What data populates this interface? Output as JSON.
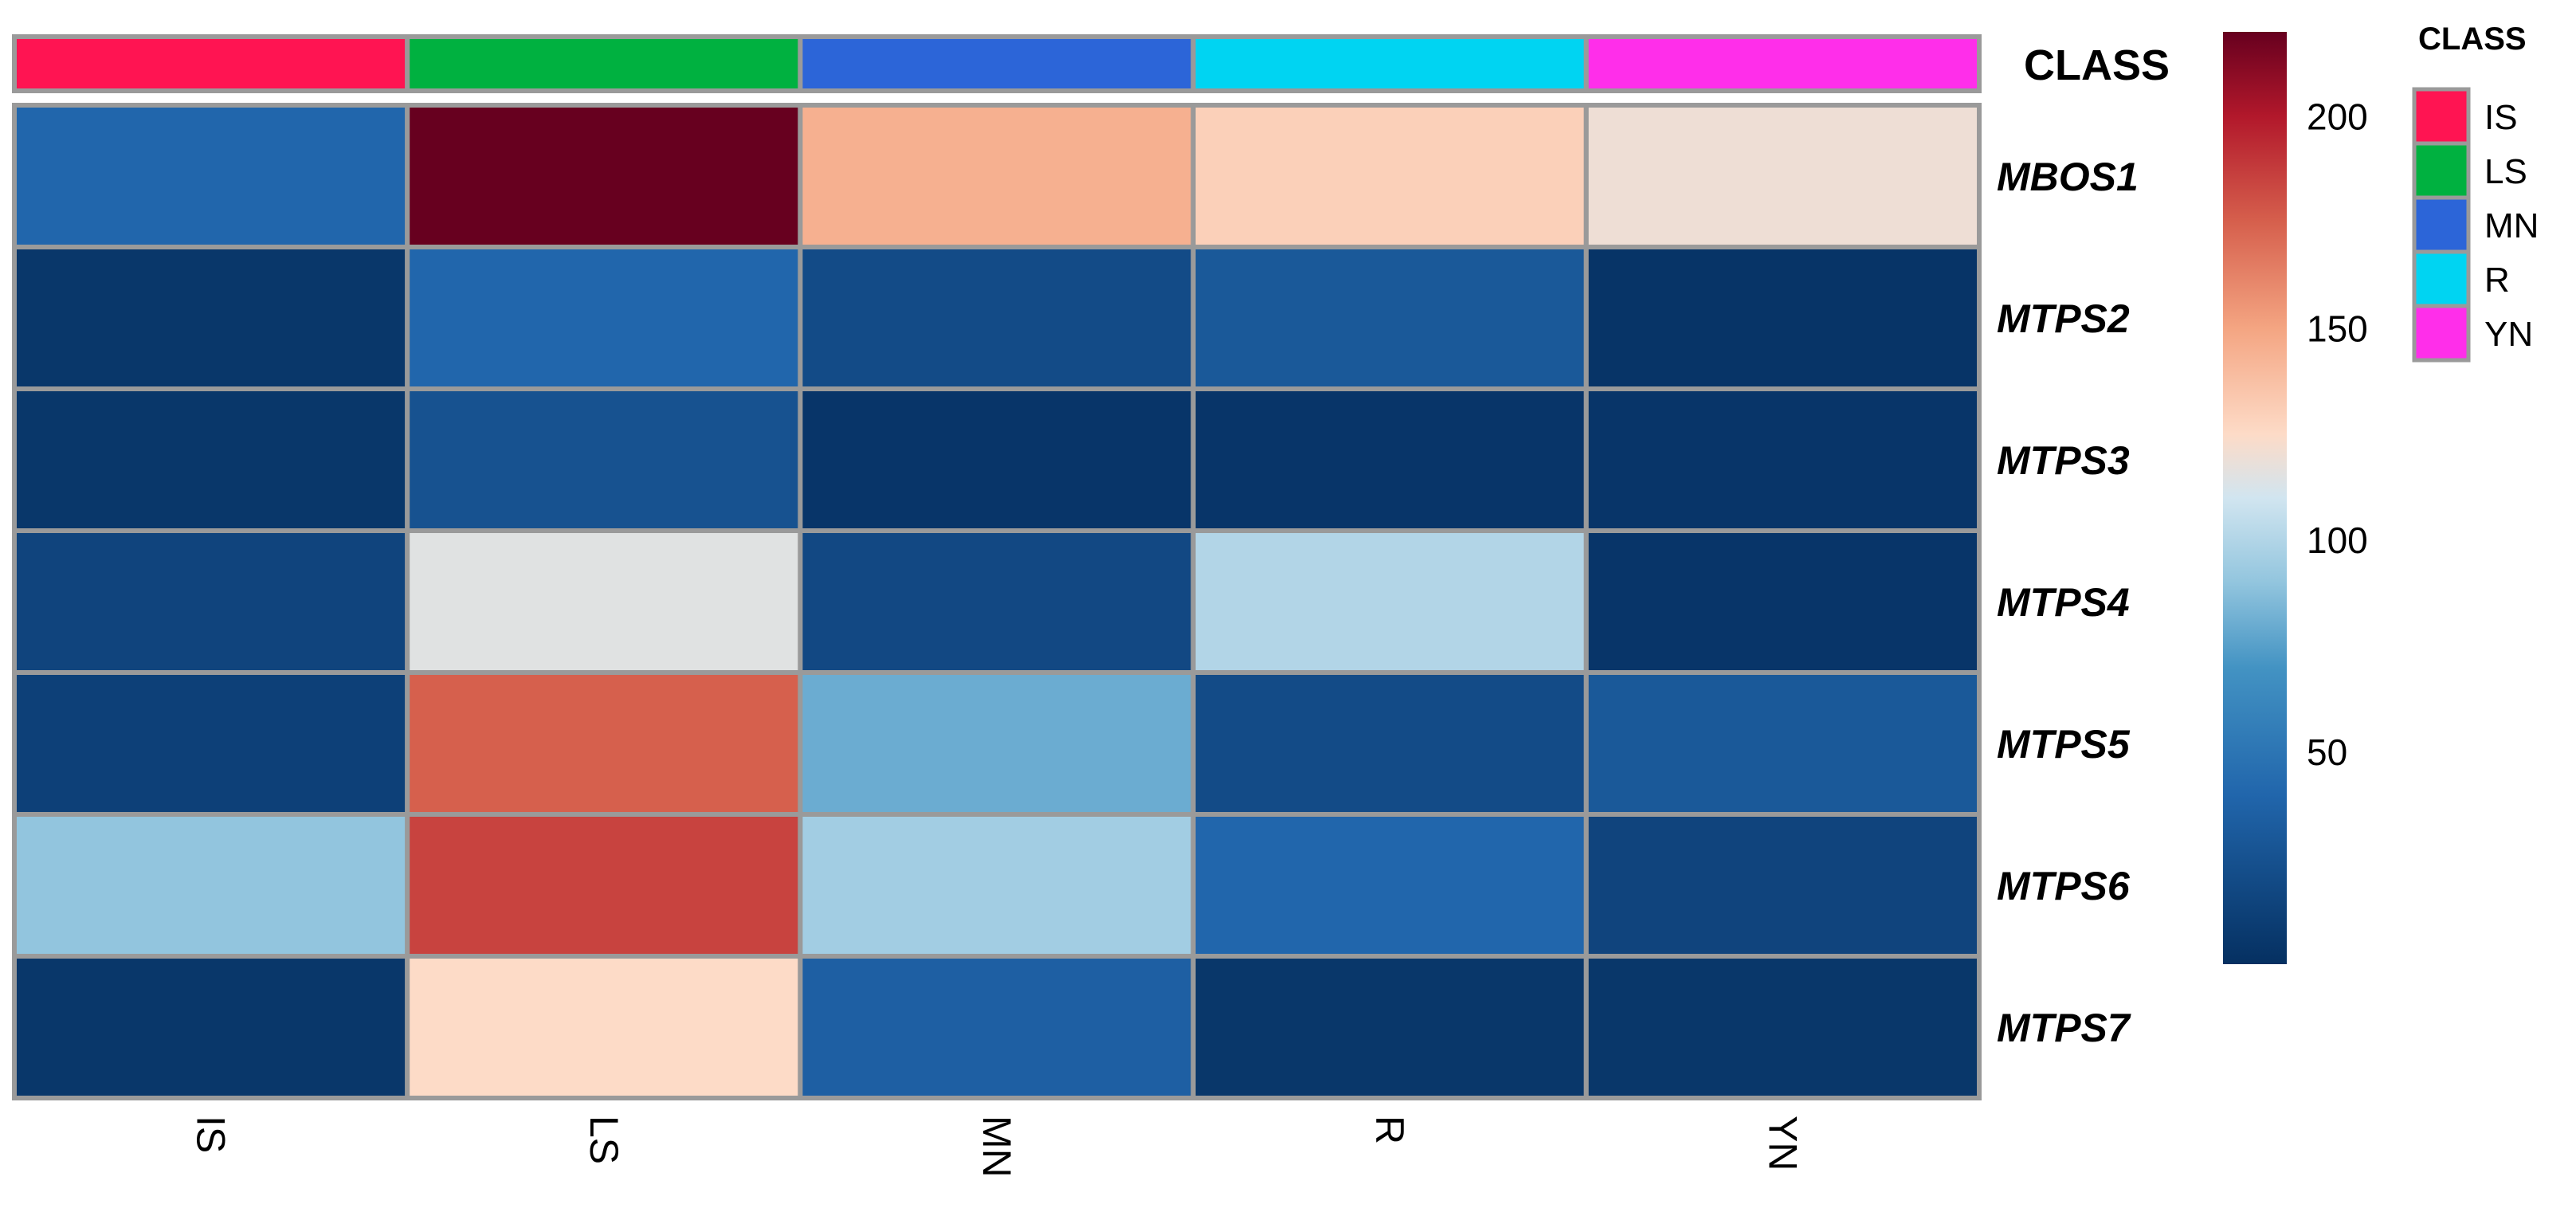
{
  "chart_data": {
    "type": "heatmap",
    "columns": [
      "IS",
      "LS",
      "MN",
      "R",
      "YN"
    ],
    "rows": [
      "MBOS1",
      "MTPS2",
      "MTPS3",
      "MTPS4",
      "MTPS5",
      "MTPS6",
      "MTPS7"
    ],
    "values": [
      [
        40,
        220,
        145,
        130,
        120
      ],
      [
        5,
        40,
        20,
        30,
        3
      ],
      [
        5,
        25,
        4,
        4,
        4
      ],
      [
        15,
        115,
        18,
        100,
        4
      ],
      [
        12,
        175,
        80,
        20,
        30
      ],
      [
        90,
        185,
        95,
        40,
        15
      ],
      [
        5,
        125,
        35,
        5,
        5
      ]
    ],
    "annotation": {
      "title": "CLASS",
      "categories": [
        "IS",
        "LS",
        "MN",
        "R",
        "YN"
      ],
      "colors": [
        "#ff1452",
        "#00b140",
        "#2c65d8",
        "#00d4f2",
        "#ff2eea"
      ]
    },
    "color_scale": {
      "min": 0,
      "max": 220,
      "ticks": [
        50,
        100,
        150,
        200
      ],
      "stops": [
        {
          "value": 0,
          "color": "#053061"
        },
        {
          "value": 40,
          "color": "#2166ac"
        },
        {
          "value": 70,
          "color": "#4393c3"
        },
        {
          "value": 90,
          "color": "#92c5de"
        },
        {
          "value": 110,
          "color": "#d1e5f0"
        },
        {
          "value": 125,
          "color": "#fddbc7"
        },
        {
          "value": 150,
          "color": "#f4a582"
        },
        {
          "value": 175,
          "color": "#d6604d"
        },
        {
          "value": 200,
          "color": "#b2182b"
        },
        {
          "value": 220,
          "color": "#67001f"
        }
      ]
    },
    "legend": {
      "title": "CLASS",
      "placement": "top-right"
    }
  }
}
